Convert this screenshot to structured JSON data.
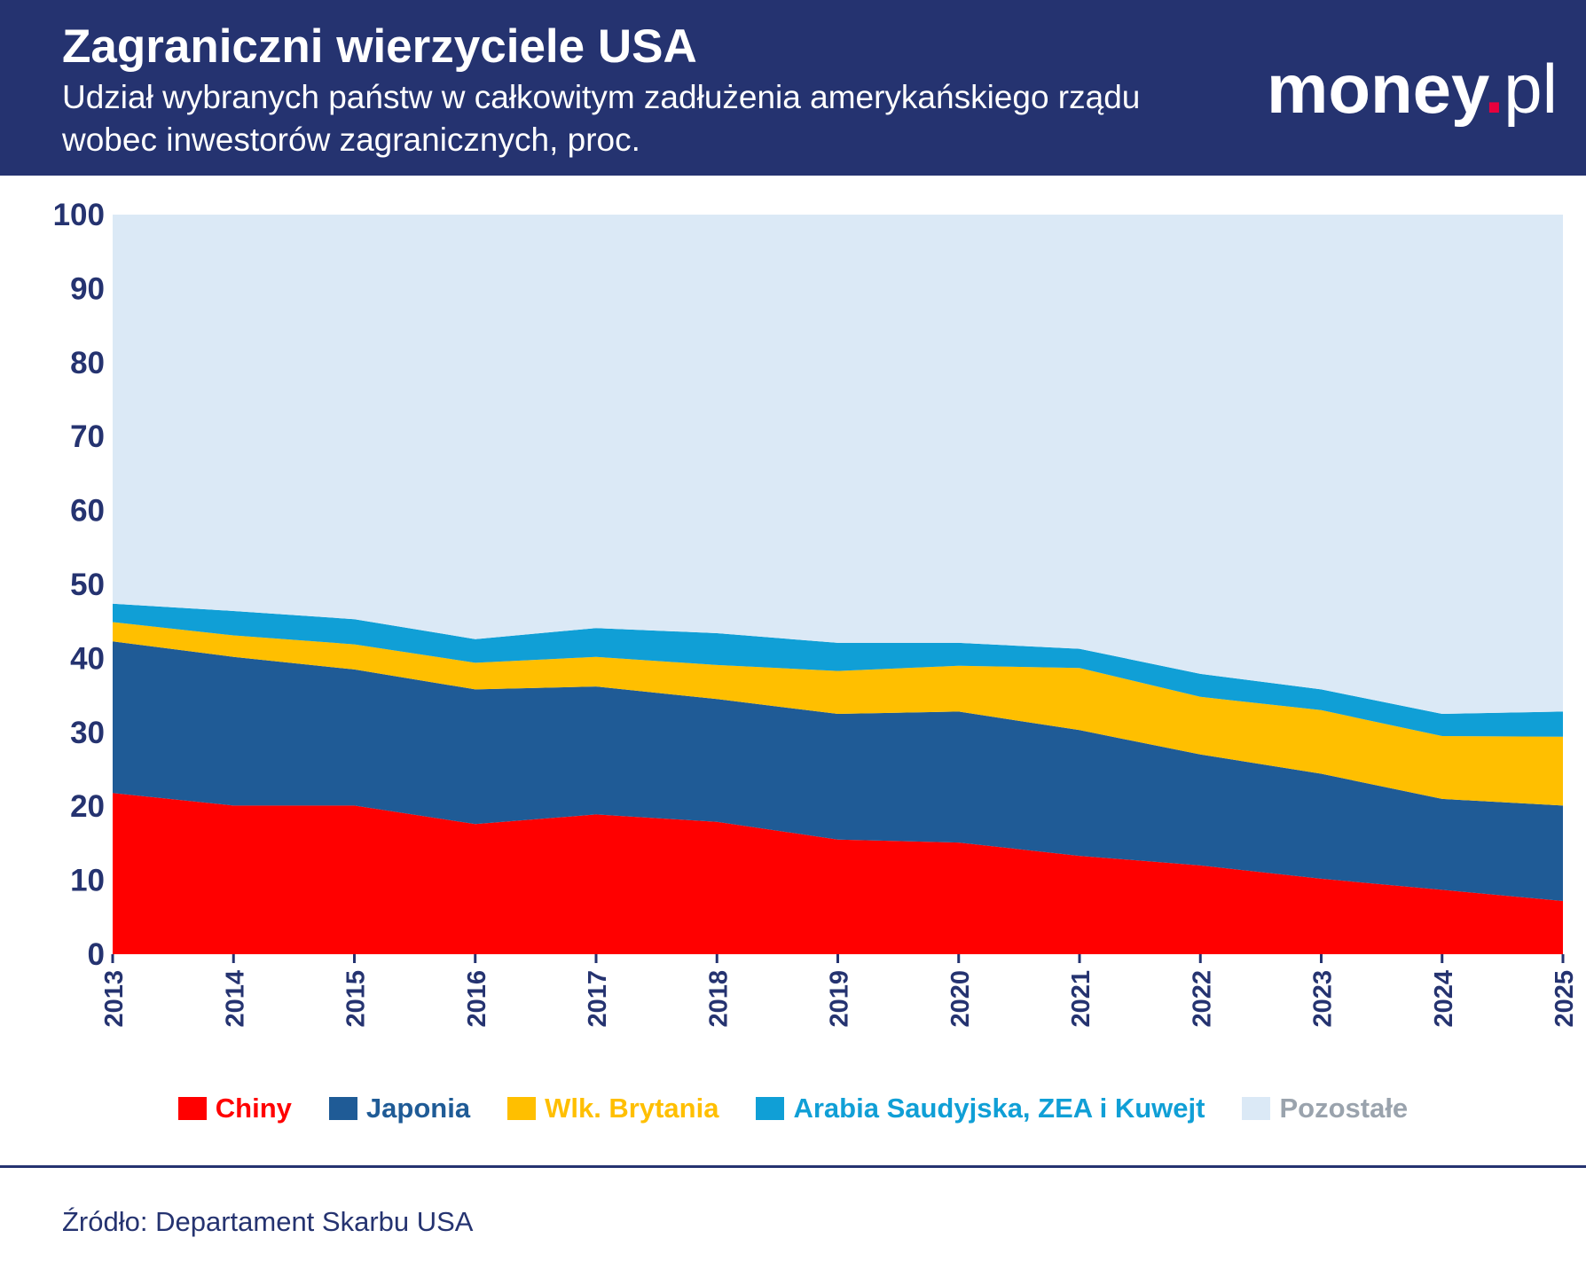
{
  "header": {
    "title": "Zagraniczni wierzyciele USA",
    "subtitle": "Udział wybranych państw w całkowitym zadłużenia amerykańskiego rządu wobec inwestorów zagranicznych, proc.",
    "logo": {
      "main": "money",
      "dot": ".",
      "suffix": "pl"
    }
  },
  "colors": {
    "header_bg": "#253370",
    "axis_text": "#253370",
    "chiny": "#ff0000",
    "japonia": "#1f5b96",
    "wlk_brytania": "#ffbf00",
    "arabia": "#109fd6",
    "pozostale": "#dbe9f6",
    "pozostale_label": "#9aa3ad"
  },
  "chart_data": {
    "type": "area",
    "stacked": true,
    "x": [
      "2013",
      "2014",
      "2015",
      "2016",
      "2017",
      "2018",
      "2019",
      "2020",
      "2021",
      "2022",
      "2023",
      "2024",
      "2025"
    ],
    "ylim": [
      0,
      100
    ],
    "yticks": [
      0,
      10,
      20,
      30,
      40,
      50,
      60,
      70,
      80,
      90,
      100
    ],
    "grid": false,
    "legend_position": "bottom",
    "series": [
      {
        "name": "Chiny",
        "color": "#ff0000",
        "values": [
          21.8,
          20.1,
          20.1,
          17.6,
          18.9,
          17.9,
          15.5,
          15.1,
          13.3,
          12.0,
          10.2,
          8.7,
          7.2
        ]
      },
      {
        "name": "Japonia",
        "color": "#1f5b96",
        "values": [
          20.5,
          20.1,
          18.4,
          18.2,
          17.3,
          16.6,
          17.0,
          17.7,
          17.0,
          15.0,
          14.2,
          12.3,
          12.9
        ]
      },
      {
        "name": "Wlk. Brytania",
        "color": "#ffbf00",
        "values": [
          2.6,
          2.9,
          3.4,
          3.6,
          4.0,
          4.6,
          5.8,
          6.2,
          8.4,
          7.8,
          8.6,
          8.5,
          9.3
        ]
      },
      {
        "name": "Arabia Saudyjska, ZEA i Kuwejt",
        "color": "#109fd6",
        "values": [
          2.5,
          3.3,
          3.4,
          3.2,
          3.9,
          4.3,
          3.8,
          3.1,
          2.6,
          3.1,
          2.8,
          3.0,
          3.4
        ]
      },
      {
        "name": "Pozostałe",
        "color": "#dbe9f6",
        "label_color": "#9aa3ad",
        "values": [
          52.6,
          53.6,
          54.7,
          57.4,
          55.9,
          56.6,
          57.9,
          57.9,
          58.7,
          62.1,
          64.2,
          67.5,
          67.2
        ]
      }
    ]
  },
  "footer": {
    "source": "Źródło: Departament Skarbu USA"
  }
}
